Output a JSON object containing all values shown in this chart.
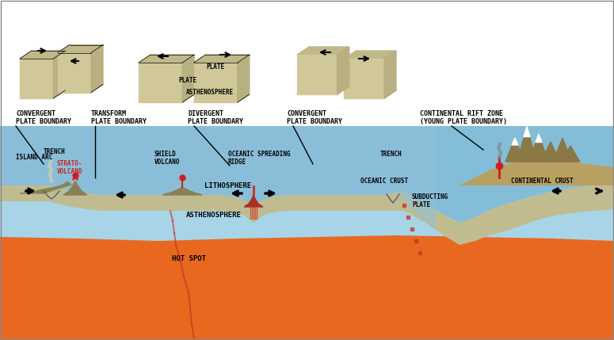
{
  "bg_color": "#ffffff",
  "main_bg": "#a8d4e8",
  "litho_color": "#c8c4a0",
  "astheno_color": "#e87830",
  "deep_color": "#e05010",
  "ocean_color": "#7ab8d4",
  "continent_color": "#c8a870",
  "labels": {
    "convergent_pb": "CONVERGENT\nPLATE BOUNDARY",
    "transform_pb": "TRANSFORM\nPLATE BOUNDARY",
    "divergent_pb": "DIVERGENT\nPLATE BOUNDARY",
    "convergent_pb2": "CONVERGENT\nPLATE BOUNDARY",
    "rift_zone": "CONTINENTAL RIFT ZONE\n(YOUNG PLATE BOUNDARY)",
    "island_arc": "ISLAND ARC",
    "trench1": "TRENCH",
    "strato": "STRATO-\nVOLCANO",
    "shield": "SHIELD\nVOLCANO",
    "oceanic_ridge": "OCEANIC SPREADING\nRIDGE",
    "trench2": "TRENCH",
    "lithosphere": "LITHOSPHERE",
    "asthenosphere": "ASTHENOSPHERE",
    "hot_spot": "HOT SPOT",
    "oceanic_crust": "OCEANIC CRUST",
    "continental_crust": "CONTINENTAL CRUST",
    "subducting": "SUBDUCTING\nPLATE",
    "plate": "PLATE",
    "asthenosphere2": "ASTHENOSPHERE"
  },
  "mini_box_color_top": "#b0a880",
  "mini_box_color_bottom": "#e87030"
}
